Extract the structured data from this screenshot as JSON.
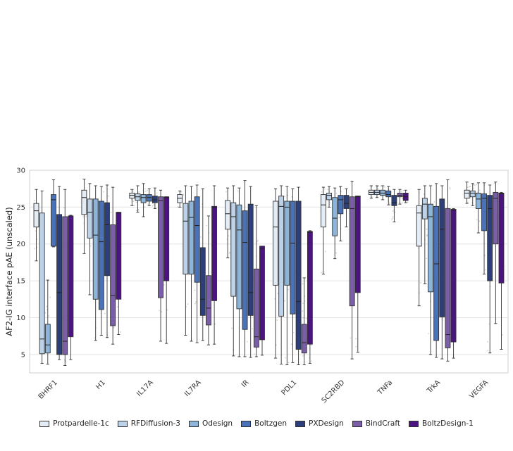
{
  "chart_data": {
    "type": "box",
    "ylabel": "AF2-IG interface pAE (unscaled)",
    "xlabel": "",
    "ylim": [
      2.5,
      30
    ],
    "yticks": [
      5,
      10,
      15,
      20,
      25,
      30
    ],
    "grid": true,
    "legend_position": "bottom",
    "categories": [
      "BHRF1",
      "H1",
      "IL17A",
      "IL7RA",
      "IR",
      "PDL1",
      "SC2RBD",
      "TNFa",
      "TrkA",
      "VEGFA"
    ],
    "series": [
      {
        "name": "Protpardelle-1c",
        "color": "#e4ecf5",
        "boxes": [
          {
            "whislo": 17.7,
            "q1": 22.3,
            "med": 24.5,
            "q3": 25.5,
            "whishi": 27.4
          },
          {
            "whislo": 18.7,
            "q1": 24.0,
            "med": 26.3,
            "q3": 27.3,
            "whishi": 28.8
          },
          {
            "whislo": 25.2,
            "q1": 26.2,
            "med": 26.6,
            "q3": 26.9,
            "whishi": 27.4
          },
          {
            "whislo": 25.0,
            "q1": 25.6,
            "med": 26.2,
            "q3": 26.7,
            "whishi": 27.2
          },
          {
            "whislo": 18.1,
            "q1": 22.0,
            "med": 24.1,
            "q3": 25.9,
            "whishi": 27.6
          },
          {
            "whislo": 4.5,
            "q1": 14.4,
            "med": 22.3,
            "q3": 25.8,
            "whishi": 27.5
          },
          {
            "whislo": 15.9,
            "q1": 22.3,
            "med": 25.3,
            "q3": 26.7,
            "whishi": 27.7
          },
          {
            "whislo": 26.2,
            "q1": 26.7,
            "med": 27.0,
            "q3": 27.3,
            "whishi": 27.9
          },
          {
            "whislo": 11.6,
            "q1": 19.7,
            "med": 24.2,
            "q3": 25.2,
            "whishi": 27.4
          },
          {
            "whislo": 25.5,
            "q1": 26.2,
            "med": 26.9,
            "q3": 27.3,
            "whishi": 28.4
          }
        ]
      },
      {
        "name": "RFDiffusion-3",
        "color": "#bcd2e8",
        "boxes": [
          {
            "whislo": 3.8,
            "q1": 5.1,
            "med": 7.1,
            "q3": 24.2,
            "whishi": 27.2
          },
          {
            "whislo": 13.1,
            "q1": 20.8,
            "med": 24.3,
            "q3": 26.1,
            "whishi": 28.2
          },
          {
            "whislo": 24.3,
            "q1": 25.9,
            "med": 26.4,
            "q3": 26.8,
            "whishi": 27.9
          },
          {
            "whislo": 7.6,
            "q1": 15.9,
            "med": 23.1,
            "q3": 25.5,
            "whishi": 27.9
          },
          {
            "whislo": 4.8,
            "q1": 12.9,
            "med": 23.7,
            "q3": 25.6,
            "whishi": 27.9
          },
          {
            "whislo": 3.7,
            "q1": 10.2,
            "med": 25.1,
            "q3": 26.5,
            "whishi": 27.9
          },
          {
            "whislo": 25.0,
            "q1": 26.0,
            "med": 26.6,
            "q3": 26.9,
            "whishi": 27.8
          },
          {
            "whislo": 26.3,
            "q1": 26.7,
            "med": 27.0,
            "q3": 27.3,
            "whishi": 27.9
          },
          {
            "whislo": 14.6,
            "q1": 23.4,
            "med": 25.4,
            "q3": 26.2,
            "whishi": 27.9
          },
          {
            "whislo": 25.2,
            "q1": 26.4,
            "med": 26.9,
            "q3": 27.2,
            "whishi": 28.2
          }
        ]
      },
      {
        "name": "Odesign",
        "color": "#8db4d9",
        "boxes": [
          {
            "whislo": 3.7,
            "q1": 5.2,
            "med": 6.3,
            "q3": 9.1,
            "whishi": 15.1
          },
          {
            "whislo": 6.9,
            "q1": 12.5,
            "med": 21.2,
            "q3": 26.1,
            "whishi": 27.9
          },
          {
            "whislo": 23.7,
            "q1": 25.6,
            "med": 26.3,
            "q3": 26.7,
            "whishi": 28.2
          },
          {
            "whislo": 6.8,
            "q1": 15.9,
            "med": 23.6,
            "q3": 25.8,
            "whishi": 27.8
          },
          {
            "whislo": 4.7,
            "q1": 11.2,
            "med": 21.9,
            "q3": 25.3,
            "whishi": 27.6
          },
          {
            "whislo": 3.6,
            "q1": 14.4,
            "med": 25.0,
            "q3": 25.8,
            "whishi": 27.8
          },
          {
            "whislo": 18.0,
            "q1": 21.1,
            "med": 23.5,
            "q3": 26.3,
            "whishi": 27.6
          },
          {
            "whislo": 26.0,
            "q1": 26.6,
            "med": 26.9,
            "q3": 27.3,
            "whishi": 27.9
          },
          {
            "whislo": 5.0,
            "q1": 13.5,
            "med": 23.7,
            "q3": 25.4,
            "whishi": 27.9
          },
          {
            "whislo": 21.5,
            "q1": 24.8,
            "med": 26.1,
            "q3": 26.9,
            "whishi": 28.3
          }
        ]
      },
      {
        "name": "Boltzgen",
        "color": "#4a72b8",
        "boxes": [
          {
            "whislo": 19.6,
            "q1": 19.7,
            "med": 26.0,
            "q3": 26.7,
            "whishi": 28.7
          },
          {
            "whislo": 7.6,
            "q1": 11.1,
            "med": 20.3,
            "q3": 25.8,
            "whishi": 27.8
          },
          {
            "whislo": 25.2,
            "q1": 25.8,
            "med": 26.3,
            "q3": 26.7,
            "whishi": 27.5
          },
          {
            "whislo": 6.6,
            "q1": 14.8,
            "med": 22.5,
            "q3": 26.4,
            "whishi": 28.0
          },
          {
            "whislo": 4.7,
            "q1": 8.4,
            "med": 20.2,
            "q3": 24.5,
            "whishi": 28.6
          },
          {
            "whislo": 3.9,
            "q1": 10.5,
            "med": 20.1,
            "q3": 25.8,
            "whishi": 27.5
          },
          {
            "whislo": 20.4,
            "q1": 24.1,
            "med": 26.0,
            "q3": 26.6,
            "whishi": 27.8
          },
          {
            "whislo": 25.3,
            "q1": 26.4,
            "med": 26.7,
            "q3": 27.2,
            "whishi": 27.8
          },
          {
            "whislo": 4.6,
            "q1": 6.9,
            "med": 17.3,
            "q3": 25.1,
            "whishi": 28.2
          },
          {
            "whislo": 15.9,
            "q1": 21.8,
            "med": 26.2,
            "q3": 26.8,
            "whishi": 28.3
          }
        ]
      },
      {
        "name": "PXDesign",
        "color": "#2d3f7a",
        "boxes": [
          {
            "whislo": 4.3,
            "q1": 5.0,
            "med": 13.4,
            "q3": 24.0,
            "whishi": 27.8
          },
          {
            "whislo": 7.3,
            "q1": 15.7,
            "med": 22.6,
            "q3": 25.6,
            "whishi": 28.0
          },
          {
            "whislo": 24.8,
            "q1": 25.6,
            "med": 26.0,
            "q3": 26.5,
            "whishi": 27.6
          },
          {
            "whislo": 6.9,
            "q1": 10.3,
            "med": 12.5,
            "q3": 19.5,
            "whishi": 27.5
          },
          {
            "whislo": 4.6,
            "q1": 10.3,
            "med": 13.4,
            "q3": 25.4,
            "whishi": 27.8
          },
          {
            "whislo": 3.6,
            "q1": 5.7,
            "med": 12.2,
            "q3": 25.8,
            "whishi": 27.7
          },
          {
            "whislo": 22.3,
            "q1": 24.8,
            "med": 25.5,
            "q3": 26.6,
            "whishi": 27.5
          },
          {
            "whislo": 23.0,
            "q1": 25.2,
            "med": 25.6,
            "q3": 26.6,
            "whishi": 27.4
          },
          {
            "whislo": 4.4,
            "q1": 10.1,
            "med": 22.0,
            "q3": 26.1,
            "whishi": 27.9
          },
          {
            "whislo": 5.2,
            "q1": 15.0,
            "med": 24.8,
            "q3": 26.6,
            "whishi": 28.0
          }
        ]
      },
      {
        "name": "BindCraft",
        "color": "#7a5ea8",
        "boxes": [
          {
            "whislo": 3.5,
            "q1": 5.0,
            "med": 6.8,
            "q3": 23.7,
            "whishi": 27.4
          },
          {
            "whislo": 6.4,
            "q1": 8.9,
            "med": 13.0,
            "q3": 22.6,
            "whishi": 27.7
          },
          {
            "whislo": 6.8,
            "q1": 12.7,
            "med": 25.9,
            "q3": 26.4,
            "whishi": 27.3
          },
          {
            "whislo": 6.3,
            "q1": 9.0,
            "med": 11.3,
            "q3": 15.7,
            "whishi": 23.8
          },
          {
            "whislo": 4.7,
            "q1": 6.0,
            "med": 7.4,
            "q3": 16.6,
            "whishi": 25.2
          },
          {
            "whislo": 3.6,
            "q1": 5.2,
            "med": 6.6,
            "q3": 9.1,
            "whishi": 15.4
          },
          {
            "whislo": 4.4,
            "q1": 11.6,
            "med": 24.8,
            "q3": 26.4,
            "whishi": 28.5
          },
          {
            "whislo": 25.4,
            "q1": 26.4,
            "med": 26.6,
            "q3": 26.9,
            "whishi": 27.4
          },
          {
            "whislo": 4.1,
            "q1": 5.9,
            "med": 7.7,
            "q3": 24.8,
            "whishi": 28.7
          },
          {
            "whislo": 9.2,
            "q1": 20.0,
            "med": 26.2,
            "q3": 27.0,
            "whishi": 28.4
          }
        ]
      },
      {
        "name": "BoltzDesign-1",
        "color": "#4b1480",
        "boxes": [
          {
            "whislo": 4.3,
            "q1": 7.4,
            "med": 23.8,
            "q3": 23.8,
            "whishi": 23.9
          },
          {
            "whislo": 7.7,
            "q1": 12.5,
            "med": 24.2,
            "q3": 24.3,
            "whishi": 24.3
          },
          {
            "whislo": 6.5,
            "q1": 15.0,
            "med": 26.3,
            "q3": 26.4,
            "whishi": 26.4
          },
          {
            "whislo": 6.4,
            "q1": 12.3,
            "med": 24.9,
            "q3": 25.1,
            "whishi": 27.9
          },
          {
            "whislo": 4.9,
            "q1": 7.0,
            "med": 19.4,
            "q3": 19.7,
            "whishi": 19.7
          },
          {
            "whislo": 3.8,
            "q1": 6.4,
            "med": 21.6,
            "q3": 21.7,
            "whishi": 21.8
          },
          {
            "whislo": 5.3,
            "q1": 13.4,
            "med": 26.4,
            "q3": 26.5,
            "whishi": 26.5
          },
          {
            "whislo": 25.6,
            "q1": 25.9,
            "med": 26.4,
            "q3": 26.9,
            "whishi": 27.3
          },
          {
            "whislo": 4.5,
            "q1": 6.7,
            "med": 24.6,
            "q3": 24.7,
            "whishi": 24.8
          },
          {
            "whislo": 5.7,
            "q1": 14.7,
            "med": 26.8,
            "q3": 26.9,
            "whishi": 27.0
          }
        ]
      }
    ]
  }
}
